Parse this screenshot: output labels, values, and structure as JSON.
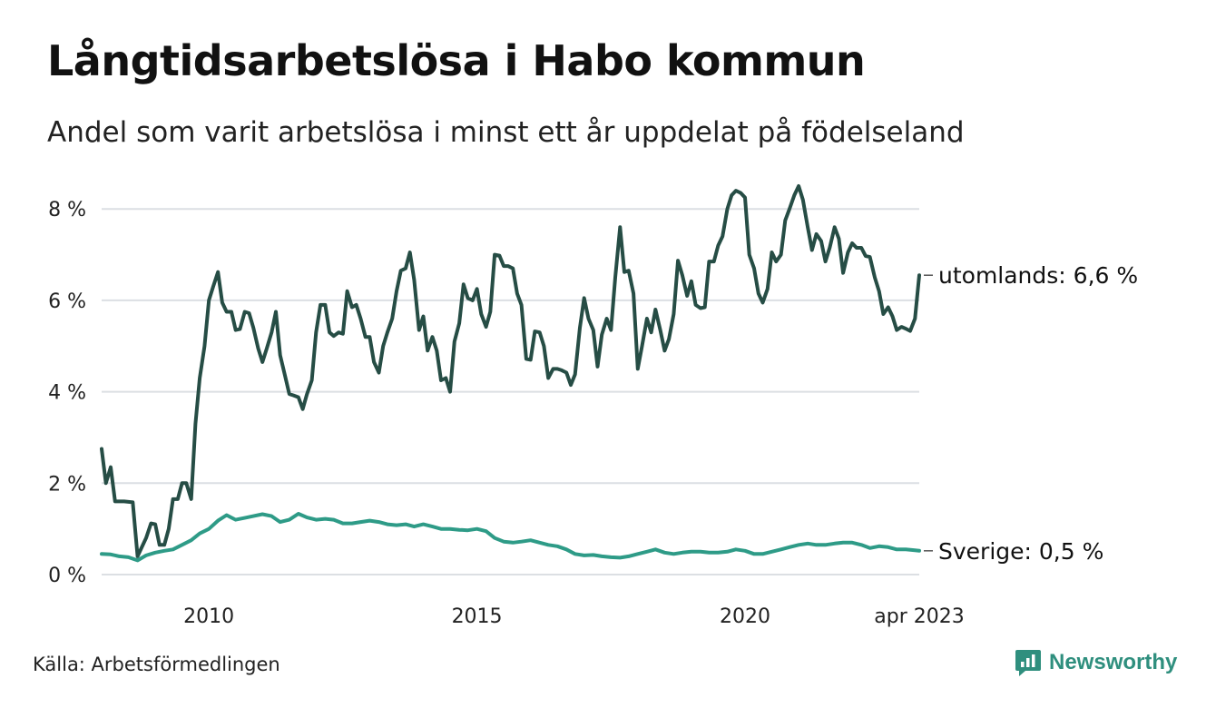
{
  "title": "Långtidsarbetslösa i Habo kommun",
  "subtitle": "Andel som varit arbetslösa i minst ett år uppdelat på födelseland",
  "source": "Källa: Arbetsförmedlingen",
  "brand": {
    "name": "Newsworthy",
    "icon": "newsworthy-logo-icon",
    "color": "#2f8f7e"
  },
  "chart_data": {
    "type": "line",
    "x_ticks": [
      {
        "label": "2010",
        "t": 2010.0
      },
      {
        "label": "2015",
        "t": 2015.0
      },
      {
        "label": "2020",
        "t": 2020.0
      },
      {
        "label": "apr 2023",
        "t": 2023.25
      }
    ],
    "xlim": [
      2008.0,
      2023.25
    ],
    "y_ticks": [
      {
        "label": "0 %",
        "v": 0
      },
      {
        "label": "2 %",
        "v": 2
      },
      {
        "label": "4 %",
        "v": 4
      },
      {
        "label": "6 %",
        "v": 6
      },
      {
        "label": "8 %",
        "v": 8
      }
    ],
    "ylim": [
      0,
      8.6
    ],
    "grid": true,
    "series": [
      {
        "name": "utomlands",
        "end_label": "utomlands: 6,6 %",
        "color": "#264d45",
        "points": [
          [
            2008.0,
            2.75
          ],
          [
            2008.08,
            2.0
          ],
          [
            2008.17,
            2.35
          ],
          [
            2008.25,
            1.6
          ],
          [
            2008.42,
            1.6
          ],
          [
            2008.58,
            1.58
          ],
          [
            2008.67,
            0.4
          ],
          [
            2008.83,
            0.8
          ],
          [
            2008.92,
            1.12
          ],
          [
            2009.0,
            1.1
          ],
          [
            2009.08,
            0.65
          ],
          [
            2009.17,
            0.65
          ],
          [
            2009.25,
            1.0
          ],
          [
            2009.33,
            1.65
          ],
          [
            2009.42,
            1.65
          ],
          [
            2009.5,
            2.0
          ],
          [
            2009.58,
            2.0
          ],
          [
            2009.67,
            1.65
          ],
          [
            2009.75,
            3.3
          ],
          [
            2009.83,
            4.3
          ],
          [
            2009.92,
            5.0
          ],
          [
            2010.0,
            6.0
          ],
          [
            2010.08,
            6.3
          ],
          [
            2010.17,
            6.62
          ],
          [
            2010.25,
            5.95
          ],
          [
            2010.33,
            5.75
          ],
          [
            2010.42,
            5.75
          ],
          [
            2010.5,
            5.35
          ],
          [
            2010.58,
            5.37
          ],
          [
            2010.67,
            5.75
          ],
          [
            2010.75,
            5.72
          ],
          [
            2010.83,
            5.4
          ],
          [
            2010.92,
            4.95
          ],
          [
            2011.0,
            4.65
          ],
          [
            2011.08,
            4.95
          ],
          [
            2011.17,
            5.3
          ],
          [
            2011.25,
            5.75
          ],
          [
            2011.33,
            4.8
          ],
          [
            2011.42,
            4.35
          ],
          [
            2011.5,
            3.95
          ],
          [
            2011.58,
            3.92
          ],
          [
            2011.67,
            3.88
          ],
          [
            2011.75,
            3.62
          ],
          [
            2011.83,
            3.95
          ],
          [
            2011.92,
            4.25
          ],
          [
            2012.0,
            5.3
          ],
          [
            2012.08,
            5.9
          ],
          [
            2012.17,
            5.9
          ],
          [
            2012.25,
            5.3
          ],
          [
            2012.33,
            5.22
          ],
          [
            2012.42,
            5.3
          ],
          [
            2012.5,
            5.27
          ],
          [
            2012.58,
            6.2
          ],
          [
            2012.67,
            5.85
          ],
          [
            2012.75,
            5.9
          ],
          [
            2012.83,
            5.6
          ],
          [
            2012.92,
            5.2
          ],
          [
            2013.0,
            5.2
          ],
          [
            2013.08,
            4.65
          ],
          [
            2013.17,
            4.42
          ],
          [
            2013.25,
            5.0
          ],
          [
            2013.33,
            5.3
          ],
          [
            2013.42,
            5.6
          ],
          [
            2013.5,
            6.2
          ],
          [
            2013.58,
            6.65
          ],
          [
            2013.67,
            6.7
          ],
          [
            2013.75,
            7.05
          ],
          [
            2013.83,
            6.45
          ],
          [
            2013.92,
            5.35
          ],
          [
            2014.0,
            5.65
          ],
          [
            2014.08,
            4.9
          ],
          [
            2014.17,
            5.2
          ],
          [
            2014.25,
            4.9
          ],
          [
            2014.33,
            4.25
          ],
          [
            2014.42,
            4.3
          ],
          [
            2014.5,
            4.0
          ],
          [
            2014.58,
            5.1
          ],
          [
            2014.67,
            5.5
          ],
          [
            2014.75,
            6.35
          ],
          [
            2014.83,
            6.05
          ],
          [
            2014.92,
            6.0
          ],
          [
            2015.0,
            6.25
          ],
          [
            2015.08,
            5.7
          ],
          [
            2015.17,
            5.42
          ],
          [
            2015.25,
            5.75
          ],
          [
            2015.33,
            7.0
          ],
          [
            2015.42,
            6.98
          ],
          [
            2015.5,
            6.75
          ],
          [
            2015.58,
            6.75
          ],
          [
            2015.67,
            6.7
          ],
          [
            2015.75,
            6.15
          ],
          [
            2015.83,
            5.9
          ],
          [
            2015.92,
            4.72
          ],
          [
            2016.0,
            4.7
          ],
          [
            2016.08,
            5.32
          ],
          [
            2016.17,
            5.3
          ],
          [
            2016.25,
            5.0
          ],
          [
            2016.33,
            4.3
          ],
          [
            2016.42,
            4.5
          ],
          [
            2016.5,
            4.5
          ],
          [
            2016.58,
            4.47
          ],
          [
            2016.67,
            4.42
          ],
          [
            2016.75,
            4.15
          ],
          [
            2016.83,
            4.38
          ],
          [
            2016.92,
            5.4
          ],
          [
            2017.0,
            6.05
          ],
          [
            2017.08,
            5.6
          ],
          [
            2017.17,
            5.35
          ],
          [
            2017.25,
            4.55
          ],
          [
            2017.33,
            5.25
          ],
          [
            2017.42,
            5.6
          ],
          [
            2017.5,
            5.35
          ],
          [
            2017.58,
            6.5
          ],
          [
            2017.67,
            7.6
          ],
          [
            2017.75,
            6.62
          ],
          [
            2017.83,
            6.65
          ],
          [
            2017.92,
            6.15
          ],
          [
            2018.0,
            4.5
          ],
          [
            2018.08,
            5.0
          ],
          [
            2018.17,
            5.6
          ],
          [
            2018.25,
            5.3
          ],
          [
            2018.33,
            5.8
          ],
          [
            2018.42,
            5.35
          ],
          [
            2018.5,
            4.9
          ],
          [
            2018.58,
            5.15
          ],
          [
            2018.67,
            5.7
          ],
          [
            2018.75,
            6.87
          ],
          [
            2018.83,
            6.55
          ],
          [
            2018.92,
            6.1
          ],
          [
            2019.0,
            6.42
          ],
          [
            2019.08,
            5.9
          ],
          [
            2019.17,
            5.83
          ],
          [
            2019.25,
            5.85
          ],
          [
            2019.33,
            6.85
          ],
          [
            2019.42,
            6.85
          ],
          [
            2019.5,
            7.2
          ],
          [
            2019.58,
            7.4
          ],
          [
            2019.67,
            8.0
          ],
          [
            2019.75,
            8.3
          ],
          [
            2019.83,
            8.4
          ],
          [
            2019.92,
            8.35
          ],
          [
            2020.0,
            8.25
          ],
          [
            2020.08,
            7.0
          ],
          [
            2020.17,
            6.7
          ],
          [
            2020.25,
            6.15
          ],
          [
            2020.33,
            5.95
          ],
          [
            2020.42,
            6.25
          ],
          [
            2020.5,
            7.05
          ],
          [
            2020.58,
            6.85
          ],
          [
            2020.67,
            7.0
          ],
          [
            2020.75,
            7.75
          ],
          [
            2020.83,
            8.0
          ],
          [
            2020.92,
            8.3
          ],
          [
            2021.0,
            8.5
          ],
          [
            2021.08,
            8.2
          ],
          [
            2021.17,
            7.6
          ],
          [
            2021.25,
            7.1
          ],
          [
            2021.33,
            7.45
          ],
          [
            2021.42,
            7.3
          ],
          [
            2021.5,
            6.85
          ],
          [
            2021.58,
            7.15
          ],
          [
            2021.67,
            7.6
          ],
          [
            2021.75,
            7.35
          ],
          [
            2021.83,
            6.6
          ],
          [
            2021.92,
            7.05
          ],
          [
            2022.0,
            7.25
          ],
          [
            2022.08,
            7.15
          ],
          [
            2022.17,
            7.15
          ],
          [
            2022.25,
            6.97
          ],
          [
            2022.33,
            6.95
          ],
          [
            2022.42,
            6.5
          ],
          [
            2022.5,
            6.2
          ],
          [
            2022.58,
            5.7
          ],
          [
            2022.67,
            5.85
          ],
          [
            2022.75,
            5.65
          ],
          [
            2022.83,
            5.35
          ],
          [
            2022.92,
            5.42
          ],
          [
            2023.0,
            5.38
          ],
          [
            2023.08,
            5.33
          ],
          [
            2023.17,
            5.6
          ],
          [
            2023.25,
            6.55
          ]
        ]
      },
      {
        "name": "Sverige",
        "end_label": "Sverige: 0,5 %",
        "color": "#2e9b87",
        "points": [
          [
            2008.0,
            0.45
          ],
          [
            2008.17,
            0.44
          ],
          [
            2008.33,
            0.4
          ],
          [
            2008.5,
            0.38
          ],
          [
            2008.67,
            0.31
          ],
          [
            2008.83,
            0.42
          ],
          [
            2009.0,
            0.48
          ],
          [
            2009.17,
            0.52
          ],
          [
            2009.33,
            0.55
          ],
          [
            2009.5,
            0.65
          ],
          [
            2009.67,
            0.75
          ],
          [
            2009.83,
            0.9
          ],
          [
            2010.0,
            1.0
          ],
          [
            2010.17,
            1.18
          ],
          [
            2010.33,
            1.3
          ],
          [
            2010.5,
            1.2
          ],
          [
            2010.67,
            1.24
          ],
          [
            2010.83,
            1.28
          ],
          [
            2011.0,
            1.32
          ],
          [
            2011.17,
            1.28
          ],
          [
            2011.33,
            1.15
          ],
          [
            2011.5,
            1.2
          ],
          [
            2011.67,
            1.33
          ],
          [
            2011.83,
            1.25
          ],
          [
            2012.0,
            1.2
          ],
          [
            2012.17,
            1.22
          ],
          [
            2012.33,
            1.2
          ],
          [
            2012.5,
            1.12
          ],
          [
            2012.67,
            1.12
          ],
          [
            2012.83,
            1.15
          ],
          [
            2013.0,
            1.18
          ],
          [
            2013.17,
            1.15
          ],
          [
            2013.33,
            1.1
          ],
          [
            2013.5,
            1.08
          ],
          [
            2013.67,
            1.1
          ],
          [
            2013.83,
            1.05
          ],
          [
            2014.0,
            1.1
          ],
          [
            2014.17,
            1.05
          ],
          [
            2014.33,
            1.0
          ],
          [
            2014.5,
            1.0
          ],
          [
            2014.67,
            0.98
          ],
          [
            2014.83,
            0.97
          ],
          [
            2015.0,
            1.0
          ],
          [
            2015.17,
            0.95
          ],
          [
            2015.33,
            0.8
          ],
          [
            2015.5,
            0.72
          ],
          [
            2015.67,
            0.7
          ],
          [
            2015.83,
            0.72
          ],
          [
            2016.0,
            0.75
          ],
          [
            2016.17,
            0.7
          ],
          [
            2016.33,
            0.65
          ],
          [
            2016.5,
            0.62
          ],
          [
            2016.67,
            0.55
          ],
          [
            2016.83,
            0.45
          ],
          [
            2017.0,
            0.42
          ],
          [
            2017.17,
            0.43
          ],
          [
            2017.33,
            0.4
          ],
          [
            2017.5,
            0.38
          ],
          [
            2017.67,
            0.37
          ],
          [
            2017.83,
            0.4
          ],
          [
            2018.0,
            0.45
          ],
          [
            2018.17,
            0.5
          ],
          [
            2018.33,
            0.55
          ],
          [
            2018.5,
            0.48
          ],
          [
            2018.67,
            0.45
          ],
          [
            2018.83,
            0.48
          ],
          [
            2019.0,
            0.5
          ],
          [
            2019.17,
            0.5
          ],
          [
            2019.33,
            0.48
          ],
          [
            2019.5,
            0.48
          ],
          [
            2019.67,
            0.5
          ],
          [
            2019.83,
            0.55
          ],
          [
            2020.0,
            0.52
          ],
          [
            2020.17,
            0.45
          ],
          [
            2020.33,
            0.45
          ],
          [
            2020.5,
            0.5
          ],
          [
            2020.67,
            0.55
          ],
          [
            2020.83,
            0.6
          ],
          [
            2021.0,
            0.65
          ],
          [
            2021.17,
            0.68
          ],
          [
            2021.33,
            0.65
          ],
          [
            2021.5,
            0.65
          ],
          [
            2021.67,
            0.68
          ],
          [
            2021.83,
            0.7
          ],
          [
            2022.0,
            0.7
          ],
          [
            2022.17,
            0.65
          ],
          [
            2022.33,
            0.58
          ],
          [
            2022.5,
            0.62
          ],
          [
            2022.67,
            0.6
          ],
          [
            2022.83,
            0.55
          ],
          [
            2023.0,
            0.55
          ],
          [
            2023.17,
            0.53
          ],
          [
            2023.25,
            0.52
          ]
        ]
      }
    ]
  }
}
